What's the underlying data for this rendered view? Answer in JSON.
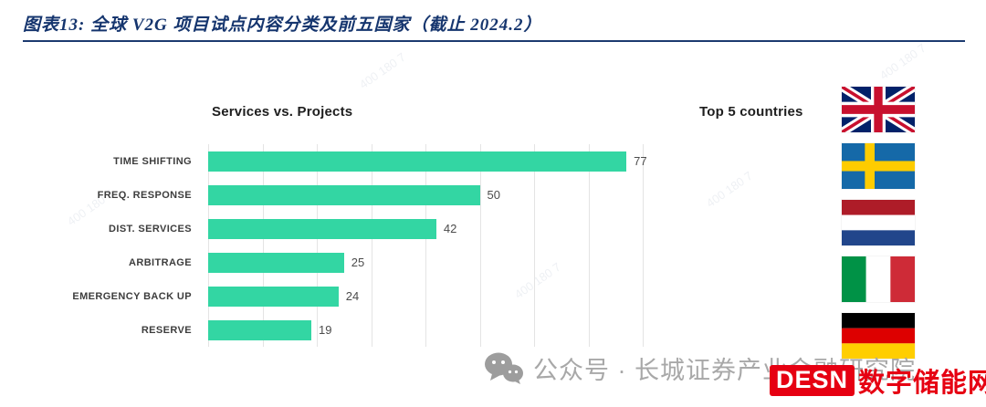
{
  "header": {
    "title": "图表13: 全球 V2G 项目试点内容分类及前五国家（截止 2024.2）"
  },
  "chart_data": {
    "type": "bar",
    "orientation": "horizontal",
    "title": "Services vs. Projects",
    "categories": [
      "TIME SHIFTING",
      "FREQ. RESPONSE",
      "DIST. SERVICES",
      "ARBITRAGE",
      "EMERGENCY BACK UP",
      "RESERVE"
    ],
    "values": [
      77,
      50,
      42,
      25,
      24,
      19
    ],
    "xlim": [
      0,
      80
    ],
    "grid_step": 10,
    "grid": true,
    "bar_color": "#33d6a3",
    "value_labels": true,
    "legend": "none"
  },
  "countries_panel": {
    "title": "Top 5 countries",
    "countries": [
      "United Kingdom",
      "Sweden",
      "Netherlands",
      "Italy",
      "Germany"
    ]
  },
  "footer": {
    "wechat_label": "公众号 · 长城证券产业金融研究院",
    "brand_badge": "DESN",
    "brand_text": "数字储能网",
    "brand_color": "#e60012"
  },
  "watermark": {
    "text": "400 180 7"
  }
}
